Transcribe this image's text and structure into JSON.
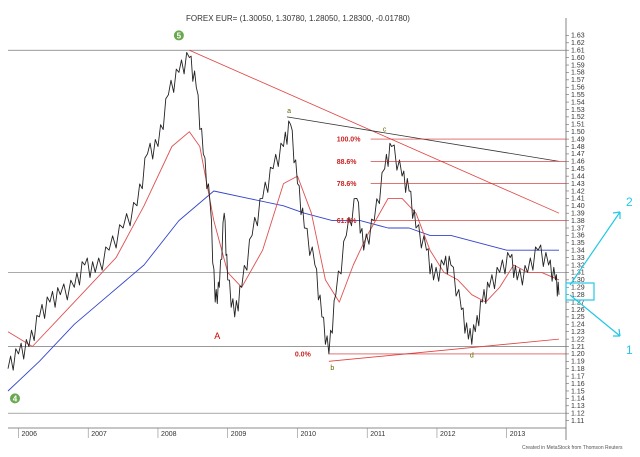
{
  "chart_data": {
    "type": "ohlc",
    "title": "FOREX EUR= (1.30050, 1.30780, 1.28050, 1.28300, -0.01780)",
    "ylim": [
      1.1,
      1.64
    ],
    "y_ticks": [
      1.11,
      1.12,
      1.13,
      1.14,
      1.15,
      1.16,
      1.17,
      1.18,
      1.19,
      1.2,
      1.21,
      1.22,
      1.23,
      1.24,
      1.25,
      1.26,
      1.27,
      1.28,
      1.29,
      1.3,
      1.31,
      1.32,
      1.33,
      1.34,
      1.35,
      1.36,
      1.37,
      1.38,
      1.39,
      1.4,
      1.41,
      1.42,
      1.43,
      1.44,
      1.45,
      1.46,
      1.47,
      1.48,
      1.49,
      1.5,
      1.51,
      1.52,
      1.53,
      1.54,
      1.55,
      1.56,
      1.57,
      1.58,
      1.59,
      1.6,
      1.61,
      1.62,
      1.63
    ],
    "xlim": [
      2005.85,
      2013.85
    ],
    "x_ticks": [
      {
        "x": 2006,
        "label": "2006"
      },
      {
        "x": 2007,
        "label": "2007"
      },
      {
        "x": 2008,
        "label": "2008"
      },
      {
        "x": 2009,
        "label": "2009"
      },
      {
        "x": 2010,
        "label": "2010"
      },
      {
        "x": 2011,
        "label": "2011"
      },
      {
        "x": 2012,
        "label": "2012"
      },
      {
        "x": 2013,
        "label": "2013"
      }
    ],
    "price": [
      [
        2005.85,
        1.18
      ],
      [
        2006.0,
        1.2
      ],
      [
        2006.15,
        1.21
      ],
      [
        2006.3,
        1.25
      ],
      [
        2006.45,
        1.27
      ],
      [
        2006.6,
        1.28
      ],
      [
        2006.8,
        1.29
      ],
      [
        2006.95,
        1.32
      ],
      [
        2007.1,
        1.31
      ],
      [
        2007.3,
        1.34
      ],
      [
        2007.5,
        1.37
      ],
      [
        2007.7,
        1.4
      ],
      [
        2007.85,
        1.47
      ],
      [
        2008.0,
        1.48
      ],
      [
        2008.15,
        1.55
      ],
      [
        2008.3,
        1.58
      ],
      [
        2008.45,
        1.6
      ],
      [
        2008.55,
        1.56
      ],
      [
        2008.65,
        1.47
      ],
      [
        2008.75,
        1.4
      ],
      [
        2008.82,
        1.27
      ],
      [
        2008.88,
        1.29
      ],
      [
        2008.95,
        1.39
      ],
      [
        2009.0,
        1.3
      ],
      [
        2009.1,
        1.25
      ],
      [
        2009.2,
        1.29
      ],
      [
        2009.35,
        1.36
      ],
      [
        2009.5,
        1.41
      ],
      [
        2009.65,
        1.45
      ],
      [
        2009.8,
        1.48
      ],
      [
        2009.9,
        1.51
      ],
      [
        2010.0,
        1.43
      ],
      [
        2010.1,
        1.37
      ],
      [
        2010.25,
        1.32
      ],
      [
        2010.35,
        1.25
      ],
      [
        2010.45,
        1.2
      ],
      [
        2010.55,
        1.28
      ],
      [
        2010.7,
        1.36
      ],
      [
        2010.85,
        1.41
      ],
      [
        2010.95,
        1.34
      ],
      [
        2011.1,
        1.38
      ],
      [
        2011.25,
        1.45
      ],
      [
        2011.35,
        1.48
      ],
      [
        2011.5,
        1.44
      ],
      [
        2011.6,
        1.42
      ],
      [
        2011.7,
        1.37
      ],
      [
        2011.85,
        1.34
      ],
      [
        2011.95,
        1.3
      ],
      [
        2012.1,
        1.32
      ],
      [
        2012.2,
        1.32
      ],
      [
        2012.35,
        1.26
      ],
      [
        2012.45,
        1.22
      ],
      [
        2012.55,
        1.23
      ],
      [
        2012.65,
        1.27
      ],
      [
        2012.75,
        1.29
      ],
      [
        2012.9,
        1.31
      ],
      [
        2013.05,
        1.33
      ],
      [
        2013.15,
        1.3
      ],
      [
        2013.3,
        1.31
      ],
      [
        2013.45,
        1.34
      ],
      [
        2013.6,
        1.32
      ],
      [
        2013.7,
        1.3
      ],
      [
        2013.75,
        1.28
      ]
    ],
    "ma_red": [
      [
        2005.85,
        1.23
      ],
      [
        2006.2,
        1.21
      ],
      [
        2006.6,
        1.25
      ],
      [
        2007.0,
        1.29
      ],
      [
        2007.4,
        1.33
      ],
      [
        2007.8,
        1.4
      ],
      [
        2008.2,
        1.48
      ],
      [
        2008.45,
        1.5
      ],
      [
        2008.6,
        1.48
      ],
      [
        2008.8,
        1.38
      ],
      [
        2009.0,
        1.31
      ],
      [
        2009.2,
        1.29
      ],
      [
        2009.5,
        1.34
      ],
      [
        2009.8,
        1.43
      ],
      [
        2010.0,
        1.44
      ],
      [
        2010.2,
        1.39
      ],
      [
        2010.4,
        1.3
      ],
      [
        2010.6,
        1.27
      ],
      [
        2010.8,
        1.32
      ],
      [
        2011.0,
        1.36
      ],
      [
        2011.3,
        1.41
      ],
      [
        2011.5,
        1.41
      ],
      [
        2011.7,
        1.39
      ],
      [
        2011.9,
        1.34
      ],
      [
        2012.1,
        1.31
      ],
      [
        2012.3,
        1.3
      ],
      [
        2012.5,
        1.28
      ],
      [
        2012.7,
        1.27
      ],
      [
        2012.9,
        1.29
      ],
      [
        2013.1,
        1.32
      ],
      [
        2013.3,
        1.31
      ],
      [
        2013.5,
        1.31
      ],
      [
        2013.75,
        1.3
      ]
    ],
    "ma_blue": [
      [
        2005.85,
        1.15
      ],
      [
        2006.3,
        1.19
      ],
      [
        2006.8,
        1.24
      ],
      [
        2007.3,
        1.28
      ],
      [
        2007.8,
        1.32
      ],
      [
        2008.3,
        1.38
      ],
      [
        2008.8,
        1.42
      ],
      [
        2009.3,
        1.41
      ],
      [
        2009.8,
        1.4
      ],
      [
        2010.1,
        1.39
      ],
      [
        2010.5,
        1.38
      ],
      [
        2010.9,
        1.38
      ],
      [
        2011.3,
        1.37
      ],
      [
        2011.6,
        1.37
      ],
      [
        2011.9,
        1.36
      ],
      [
        2012.2,
        1.36
      ],
      [
        2012.6,
        1.35
      ],
      [
        2013.0,
        1.34
      ],
      [
        2013.4,
        1.34
      ],
      [
        2013.75,
        1.34
      ]
    ],
    "h_lines": [
      1.61,
      1.31,
      1.21,
      1.12
    ],
    "fib_levels": [
      {
        "label": "100.0%",
        "y": 1.49
      },
      {
        "label": "88.6%",
        "y": 1.46
      },
      {
        "label": "78.6%",
        "y": 1.43
      },
      {
        "label": "61.8%",
        "y": 1.38
      },
      {
        "label": "0.0%",
        "y": 1.2
      }
    ],
    "trendlines": [
      {
        "color": "#e04040",
        "from": [
          2008.45,
          1.61
        ],
        "to": [
          2013.75,
          1.39
        ]
      },
      {
        "color": "#333333",
        "from": [
          2009.85,
          1.52
        ],
        "to": [
          2013.75,
          1.46
        ]
      },
      {
        "color": "#e04040",
        "from": [
          2010.45,
          1.19
        ],
        "to": [
          2013.75,
          1.22
        ]
      }
    ],
    "wave_labels": [
      {
        "text": "a",
        "x": 2009.88,
        "y": 1.525
      },
      {
        "text": "c",
        "x": 2011.25,
        "y": 1.5
      },
      {
        "text": "b",
        "x": 2010.5,
        "y": 1.178
      },
      {
        "text": "d",
        "x": 2012.5,
        "y": 1.195
      },
      {
        "text": "A",
        "x": 2008.85,
        "y": 1.22
      }
    ],
    "circle_labels": [
      {
        "text": "5",
        "x": 2008.3,
        "y": 1.63
      },
      {
        "text": "4",
        "x": 2005.95,
        "y": 1.14
      }
    ],
    "footer": "Created in MetaStock from Thomson Reuters",
    "annotation_color": "#22c8e6",
    "annotations": [
      {
        "text": "2",
        "x": 2013.95,
        "y": 1.4
      },
      {
        "text": "1",
        "x": 2013.95,
        "y": 1.2
      }
    ],
    "colors": {
      "price": "#222222",
      "ma_red": "#e05050",
      "ma_blue": "#3344cc",
      "grid": "#999999",
      "fib": "#cc2222"
    }
  }
}
